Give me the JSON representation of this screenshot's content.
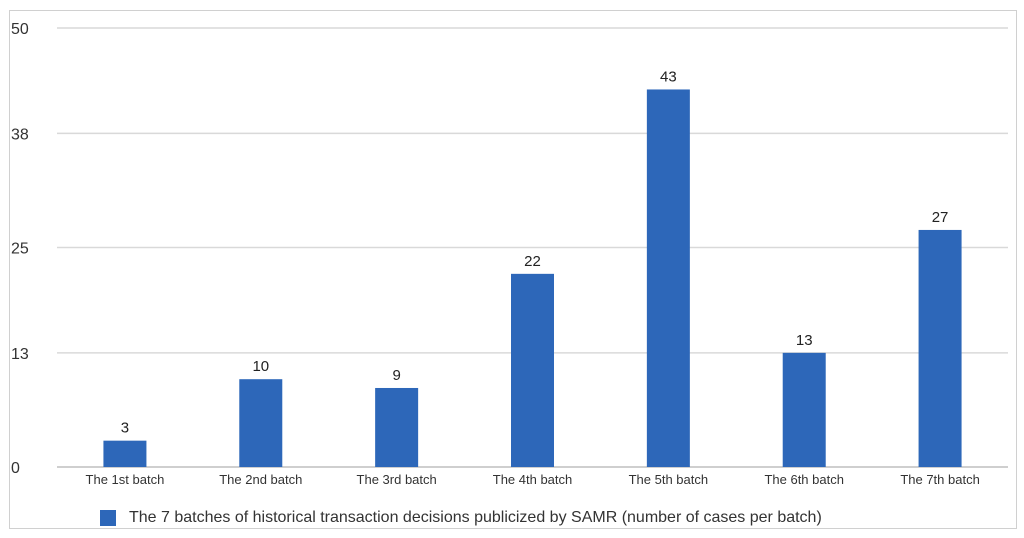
{
  "chart_data": {
    "type": "bar",
    "categories": [
      "The 1st batch",
      "The 2nd batch",
      "The 3rd batch",
      "The 4th batch",
      "The 5th batch",
      "The 6th batch",
      "The 7th batch"
    ],
    "series": [
      {
        "name": "The 7 batches of historical transaction decisions publicized by SAMR (number of cases per batch)",
        "values": [
          3,
          10,
          9,
          22,
          43,
          13,
          27
        ],
        "color": "#2d67b9"
      }
    ],
    "data_labels": [
      "3",
      "10",
      "9",
      "22",
      "43",
      "13",
      "27"
    ],
    "y_ticks": [
      0,
      13,
      25,
      38,
      50
    ],
    "ylim": [
      0,
      50
    ],
    "grid": true,
    "legend_position": "bottom",
    "title": "",
    "xlabel": "",
    "ylabel": ""
  }
}
